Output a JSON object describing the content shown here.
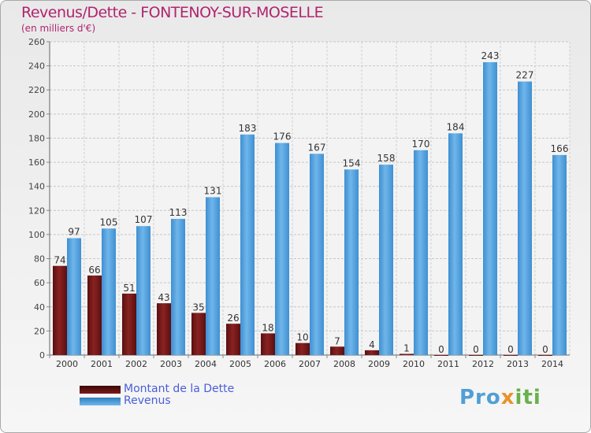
{
  "title": "Revenus/Dette - FONTENOY-SUR-MOSELLE",
  "subtitle": "(en milliers d'€)",
  "chart_data": {
    "type": "bar",
    "categories": [
      "2000",
      "2001",
      "2002",
      "2003",
      "2004",
      "2005",
      "2006",
      "2007",
      "2008",
      "2009",
      "2010",
      "2011",
      "2012",
      "2013",
      "2014"
    ],
    "series": [
      {
        "name": "Montant de la Dette",
        "values": [
          74,
          66,
          51,
          43,
          35,
          26,
          18,
          10,
          7,
          4,
          1,
          0,
          0,
          0,
          0
        ],
        "color": "#7b1a1a"
      },
      {
        "name": "Revenus",
        "values": [
          97,
          105,
          107,
          113,
          131,
          183,
          176,
          167,
          154,
          158,
          170,
          184,
          243,
          227,
          166
        ],
        "color": "#4da0e0"
      }
    ],
    "ylim": [
      0,
      260
    ],
    "ytick_step": 20,
    "grid": true,
    "legend": "bottom-left"
  },
  "logo": {
    "part1": "Pro",
    "part2": "x",
    "part3": "iti"
  }
}
